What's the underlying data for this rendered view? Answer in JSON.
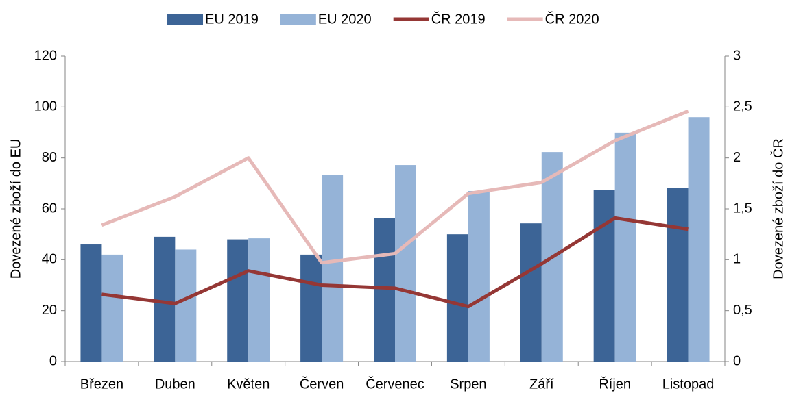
{
  "chart_data": {
    "type": "bar",
    "categories": [
      "Březen",
      "Duben",
      "Květen",
      "Červen",
      "Červenec",
      "Srpen",
      "Září",
      "Říjen",
      "Listopad"
    ],
    "series": [
      {
        "name": "EU 2019",
        "type": "bar",
        "color": "#3c6496",
        "values": [
          46,
          49,
          48,
          42,
          56.5,
          50,
          54.3,
          67.3,
          68.3
        ]
      },
      {
        "name": "EU 2020",
        "type": "bar",
        "color": "#95b3d7",
        "values": [
          42,
          44,
          48.4,
          73.4,
          77.2,
          67,
          82.3,
          89.9,
          96
        ]
      },
      {
        "name": "ČR 2019",
        "type": "line",
        "axis": "y2",
        "color": "#953735",
        "values": [
          0.66,
          0.57,
          0.89,
          0.75,
          0.72,
          0.54,
          0.96,
          1.41,
          1.3
        ]
      },
      {
        "name": "ČR 2020",
        "type": "line",
        "axis": "y2",
        "color": "#e6b9b8",
        "values": [
          1.34,
          1.62,
          2.0,
          0.97,
          1.06,
          1.65,
          1.76,
          2.17,
          2.46
        ]
      }
    ],
    "ylabel": "Dovezené zboží do EU",
    "y2label": "Dovezené zboží do ČR",
    "ylim": [
      0,
      120
    ],
    "yticks": [
      0,
      20,
      40,
      60,
      80,
      100,
      120
    ],
    "y2lim": [
      0,
      3
    ],
    "y2ticks": [
      0,
      {
        "value": 0.5,
        "label": "0,5"
      },
      1,
      {
        "value": 1.5,
        "label": "1,5"
      },
      2,
      {
        "value": 2.5,
        "label": "2,5"
      },
      3
    ],
    "legend": "top"
  }
}
